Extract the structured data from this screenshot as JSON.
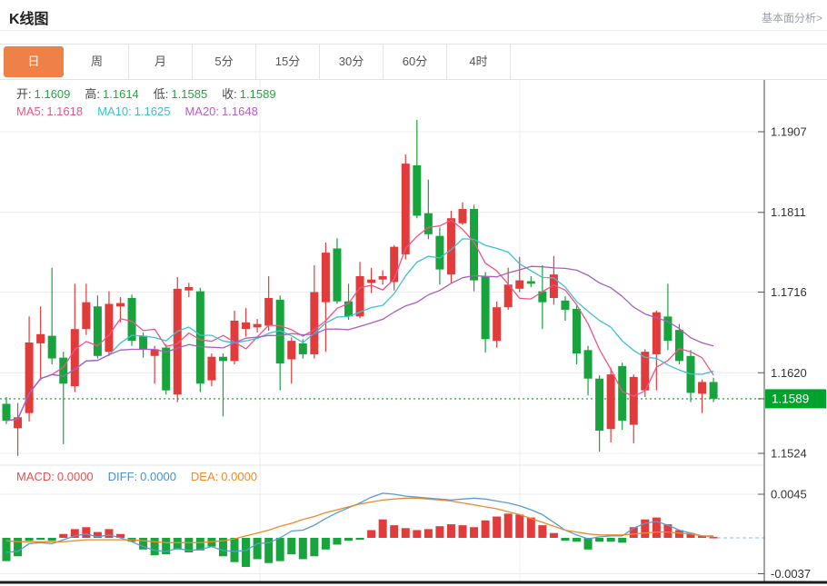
{
  "header": {
    "title": "K线图",
    "link_label": "基本面分析>"
  },
  "tabs": {
    "active_index": 0,
    "items": [
      {
        "label": "日",
        "name": "tab-day"
      },
      {
        "label": "周",
        "name": "tab-week"
      },
      {
        "label": "月",
        "name": "tab-month"
      },
      {
        "label": "5分",
        "name": "tab-5min"
      },
      {
        "label": "15分",
        "name": "tab-15min"
      },
      {
        "label": "30分",
        "name": "tab-30min"
      },
      {
        "label": "60分",
        "name": "tab-60min"
      },
      {
        "label": "4时",
        "name": "tab-4hour"
      }
    ]
  },
  "ohlc": {
    "open_label": "开:",
    "open": "1.1609",
    "high_label": "高:",
    "high": "1.1614",
    "low_label": "低:",
    "low": "1.1585",
    "close_label": "收:",
    "close": "1.1589"
  },
  "ma_legend": {
    "ma5_label": "MA5:",
    "ma5": "1.1618",
    "ma10_label": "MA10:",
    "ma10": "1.1625",
    "ma20_label": "MA20:",
    "ma20": "1.1648"
  },
  "macd_legend": {
    "macd_label": "MACD:",
    "macd": "0.0000",
    "diff_label": "DIFF:",
    "diff": "0.0000",
    "dea_label": "DEA:",
    "dea": "0.0000"
  },
  "colors": {
    "accent_tab": "#ee8147",
    "bull": "#e23b3b",
    "bear": "#18a43c",
    "ma5": "#ee5586",
    "ma10": "#3ec0d0",
    "ma20": "#a95fc0",
    "diff_line": "#5b9bd5",
    "dea_line": "#ee8a2f",
    "badge_bg": "#00a32c",
    "price_dotted_line": "#3fae5f",
    "grid": "#ececec",
    "axis_text": "#333333",
    "axis_line": "#4a4a4a"
  },
  "chart_data": {
    "type": "candlestick",
    "panels": [
      "price",
      "macd"
    ],
    "legend": [
      "MA5",
      "MA10",
      "MA20",
      "MACD",
      "DIFF",
      "DEA"
    ],
    "price_axis_ticks": [
      1.1907,
      1.1811,
      1.1716,
      1.162,
      1.1524
    ],
    "current_price": 1.1589,
    "current_price_label": "1.1589",
    "ma_windows": [
      5,
      10,
      20
    ],
    "candles": [
      [
        1.1583,
        1.1591,
        1.1559,
        1.1563
      ],
      [
        1.1554,
        1.1584,
        1.1521,
        1.1567
      ],
      [
        1.1572,
        1.1687,
        1.1562,
        1.1656
      ],
      [
        1.1655,
        1.1699,
        1.1611,
        1.1666
      ],
      [
        1.1664,
        1.1745,
        1.163,
        1.1637
      ],
      [
        1.1638,
        1.1645,
        1.1535,
        1.1607
      ],
      [
        1.1604,
        1.1726,
        1.1597,
        1.1672
      ],
      [
        1.1672,
        1.1726,
        1.1665,
        1.1704
      ],
      [
        1.1699,
        1.1712,
        1.1637,
        1.164
      ],
      [
        1.1645,
        1.1717,
        1.164,
        1.1702
      ],
      [
        1.1699,
        1.171,
        1.168,
        1.1703
      ],
      [
        1.1709,
        1.1713,
        1.1652,
        1.1658
      ],
      [
        1.1664,
        1.1668,
        1.1638,
        1.1648
      ],
      [
        1.164,
        1.1652,
        1.1607,
        1.1648
      ],
      [
        1.165,
        1.1654,
        1.1594,
        1.1599
      ],
      [
        1.1594,
        1.1734,
        1.1585,
        1.172
      ],
      [
        1.1718,
        1.1727,
        1.171,
        1.1722
      ],
      [
        1.1717,
        1.1721,
        1.1597,
        1.1607
      ],
      [
        1.1611,
        1.1643,
        1.1604,
        1.1639
      ],
      [
        1.1639,
        1.1643,
        1.1568,
        1.1634
      ],
      [
        1.1634,
        1.1694,
        1.163,
        1.1682
      ],
      [
        1.1672,
        1.1697,
        1.1663,
        1.168
      ],
      [
        1.1674,
        1.1684,
        1.1668,
        1.1678
      ],
      [
        1.1676,
        1.1735,
        1.167,
        1.1709
      ],
      [
        1.1707,
        1.1712,
        1.1599,
        1.1631
      ],
      [
        1.1636,
        1.1662,
        1.1607,
        1.1658
      ],
      [
        1.1655,
        1.166,
        1.1637,
        1.1642
      ],
      [
        1.1642,
        1.1748,
        1.1637,
        1.1716
      ],
      [
        1.1704,
        1.1775,
        1.1645,
        1.1763
      ],
      [
        1.1768,
        1.178,
        1.1702,
        1.1705
      ],
      [
        1.1705,
        1.1726,
        1.1683,
        1.1687
      ],
      [
        1.1687,
        1.1752,
        1.1685,
        1.1735
      ],
      [
        1.1727,
        1.1745,
        1.1715,
        1.1731
      ],
      [
        1.1731,
        1.1742,
        1.1725,
        1.1735
      ],
      [
        1.1728,
        1.1772,
        1.1718,
        1.177
      ],
      [
        1.1761,
        1.188,
        1.1755,
        1.1869
      ],
      [
        1.1867,
        1.1921,
        1.1804,
        1.1807
      ],
      [
        1.181,
        1.185,
        1.1779,
        1.1785
      ],
      [
        1.1783,
        1.1793,
        1.1725,
        1.1743
      ],
      [
        1.1737,
        1.1813,
        1.1727,
        1.1804
      ],
      [
        1.1798,
        1.1823,
        1.1796,
        1.1815
      ],
      [
        1.1815,
        1.182,
        1.1717,
        1.173
      ],
      [
        1.1735,
        1.174,
        1.1644,
        1.166
      ],
      [
        1.1658,
        1.1705,
        1.165,
        1.1698
      ],
      [
        1.1698,
        1.1745,
        1.1695,
        1.1725
      ],
      [
        1.172,
        1.1758,
        1.1716,
        1.173
      ],
      [
        1.1729,
        1.1735,
        1.1722,
        1.1726
      ],
      [
        1.1717,
        1.1748,
        1.1672,
        1.1704
      ],
      [
        1.1709,
        1.1759,
        1.1701,
        1.1737
      ],
      [
        1.1706,
        1.1711,
        1.1682,
        1.1695
      ],
      [
        1.1696,
        1.1701,
        1.163,
        1.1643
      ],
      [
        1.1647,
        1.1652,
        1.1593,
        1.1613
      ],
      [
        1.1613,
        1.1617,
        1.1526,
        1.1551
      ],
      [
        1.1553,
        1.1626,
        1.1537,
        1.1618
      ],
      [
        1.1628,
        1.1632,
        1.1552,
        1.1563
      ],
      [
        1.1558,
        1.1618,
        1.1536,
        1.1615
      ],
      [
        1.1599,
        1.1648,
        1.1591,
        1.1645
      ],
      [
        1.1642,
        1.1694,
        1.1599,
        1.1692
      ],
      [
        1.1687,
        1.1726,
        1.1647,
        1.1658
      ],
      [
        1.1671,
        1.1678,
        1.163,
        1.1634
      ],
      [
        1.164,
        1.1647,
        1.1585,
        1.1596
      ],
      [
        1.1595,
        1.1612,
        1.1572,
        1.1609
      ],
      [
        1.1609,
        1.1614,
        1.1585,
        1.1589
      ]
    ],
    "macd_axis_ticks": [
      0.0045,
      -0.0037
    ],
    "macd": {
      "hist": [
        -0.0024,
        -0.0019,
        -0.0003,
        -0.0002,
        -0.0003,
        0.0004,
        0.0009,
        0.0011,
        0.0006,
        0.0009,
        0.0004,
        -0.0004,
        -0.0012,
        -0.0018,
        -0.0017,
        -0.0012,
        -0.0015,
        -0.0013,
        -0.0009,
        -0.0019,
        -0.0025,
        -0.003,
        -0.0022,
        -0.0026,
        -0.0024,
        -0.0017,
        -0.0022,
        -0.0019,
        -0.0012,
        -0.0007,
        -0.0003,
        -0.0002,
        0.0008,
        0.0019,
        0.0013,
        0.001,
        0.0008,
        0.0009,
        0.0012,
        0.0014,
        0.0013,
        0.0011,
        0.0018,
        0.0022,
        0.0025,
        0.0024,
        0.0021,
        0.0013,
        0.0005,
        -0.0003,
        -0.0004,
        -0.0012,
        -0.0004,
        -0.0004,
        -0.0005,
        0.0011,
        0.0019,
        0.0021,
        0.0014,
        0.0008,
        0.0005,
        0.0002,
        0.0001
      ],
      "diff": [
        -0.0015,
        -0.0014,
        -0.0006,
        -0.0005,
        -0.0006,
        -0.0002,
        0.0002,
        0.0004,
        0.0001,
        0.0003,
        0.0,
        -0.0004,
        -0.0009,
        -0.0013,
        -0.0014,
        -0.0011,
        -0.0013,
        -0.0012,
        -0.0009,
        -0.0013,
        -0.0014,
        -0.0013,
        -0.0006,
        -0.0005,
        0.0,
        0.0007,
        0.0008,
        0.0013,
        0.002,
        0.0026,
        0.0031,
        0.0036,
        0.0042,
        0.0046,
        0.0045,
        0.0043,
        0.0042,
        0.0041,
        0.004,
        0.0039,
        0.004,
        0.0041,
        0.004,
        0.0038,
        0.0036,
        0.0033,
        0.0029,
        0.0024,
        0.0016,
        0.0008,
        0.0003,
        -0.0001,
        0.0001,
        0.0002,
        0.0002,
        0.001,
        0.0015,
        0.0017,
        0.0013,
        0.0008,
        0.0005,
        0.0002,
        0.0002
      ],
      "dea": [
        -0.0003,
        -0.0004,
        -0.0004,
        -0.0004,
        -0.0004,
        -0.0004,
        -0.0003,
        -0.0002,
        -0.0002,
        -0.0002,
        -0.0002,
        -0.0002,
        -0.0003,
        -0.0004,
        -0.0005,
        -0.0005,
        -0.0005,
        -0.0005,
        -0.0004,
        -0.0003,
        -0.0001,
        0.0002,
        0.0005,
        0.0008,
        0.0012,
        0.0015,
        0.0019,
        0.0022,
        0.0026,
        0.0029,
        0.0032,
        0.0035,
        0.0037,
        0.0039,
        0.004,
        0.0041,
        0.0041,
        0.004,
        0.0039,
        0.0038,
        0.0036,
        0.0034,
        0.0032,
        0.003,
        0.0027,
        0.0024,
        0.002,
        0.0016,
        0.0012,
        0.0008,
        0.0006,
        0.0004,
        0.0003,
        0.0003,
        0.0003,
        0.0004,
        0.0005,
        0.0006,
        0.0006,
        0.0005,
        0.0004,
        0.0002,
        0.0001
      ]
    }
  }
}
